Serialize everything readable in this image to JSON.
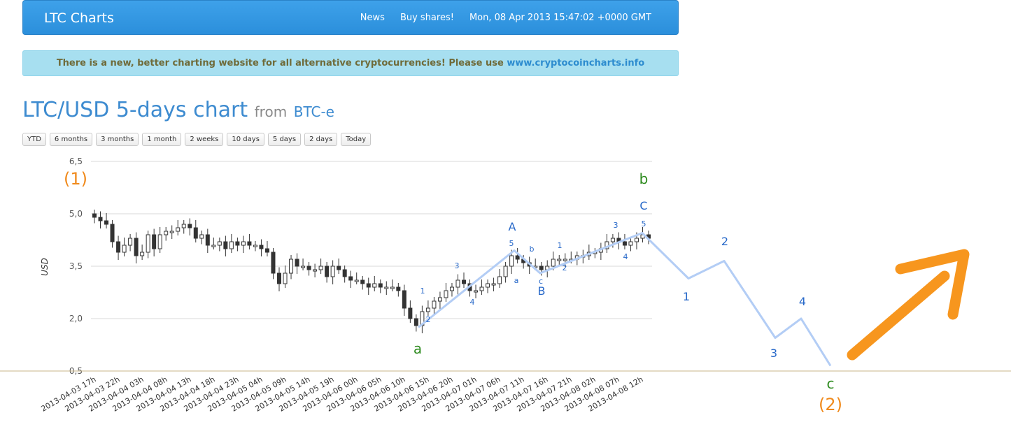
{
  "navbar": {
    "brand": "LTC Charts",
    "links": [
      "News",
      "Buy shares!"
    ],
    "datetime": "Mon, 08 Apr 2013 15:47:02 +0000 GMT"
  },
  "notice": {
    "text": "There is a new, better charting website for all alternative cryptocurrencies! Please use ",
    "link": "www.cryptocoincharts.info"
  },
  "header": {
    "title": "LTC/USD 5-days chart",
    "from": "from",
    "exchange": "BTC-e"
  },
  "ranges": [
    "YTD",
    "6 months",
    "3 months",
    "1 month",
    "2 weeks",
    "10 days",
    "5 days",
    "2 days",
    "Today"
  ],
  "colors": {
    "candle": "#333333",
    "wave_line": "#b3cdf5",
    "blue_label": "#2869c9",
    "green_label": "#2e8b1f",
    "orange_label": "#f08a1c",
    "arrow": "#f7961e"
  },
  "chart_data": {
    "type": "candlestick",
    "ylabel": "USD",
    "yticks": [
      "6,5",
      "5,0",
      "3,5",
      "2,0",
      "0,5"
    ],
    "ytick_values": [
      6.5,
      5.0,
      3.5,
      2.0,
      0.5
    ],
    "ylim": [
      0.5,
      6.5
    ],
    "xticks": [
      "2013-04-03 17h",
      "2013-04-03 22h",
      "2013-04-04 03h",
      "2013-04-04 08h",
      "2013-04-04 13h",
      "2013-04-04 18h",
      "2013-04-04 23h",
      "2013-04-05 04h",
      "2013-04-05 09h",
      "2013-04-05 14h",
      "2013-04-05 19h",
      "2013-04-06 00h",
      "2013-04-06 05h",
      "2013-04-06 10h",
      "2013-04-06 15h",
      "2013-04-06 20h",
      "2013-04-07 01h",
      "2013-04-07 06h",
      "2013-04-07 11h",
      "2013-04-07 16h",
      "2013-04-07 21h",
      "2013-04-08 02h",
      "2013-04-08 07h",
      "2013-04-08 12h"
    ],
    "grid": true,
    "closes": [
      4.9,
      4.8,
      4.7,
      4.2,
      3.9,
      4.1,
      4.3,
      3.8,
      3.9,
      4.4,
      4.0,
      4.4,
      4.5,
      4.5,
      4.6,
      4.7,
      4.6,
      4.3,
      4.4,
      4.1,
      4.1,
      4.2,
      4.0,
      4.2,
      4.1,
      4.2,
      4.1,
      4.1,
      4.0,
      3.9,
      3.3,
      3.0,
      3.3,
      3.7,
      3.5,
      3.5,
      3.4,
      3.4,
      3.5,
      3.2,
      3.5,
      3.4,
      3.2,
      3.1,
      3.1,
      3.0,
      2.9,
      3.0,
      2.9,
      2.9,
      2.9,
      2.8,
      2.3,
      2.0,
      1.8,
      2.2,
      2.3,
      2.5,
      2.6,
      2.8,
      2.9,
      3.1,
      3.0,
      2.8,
      2.8,
      2.9,
      3.0,
      3.0,
      3.2,
      3.5,
      3.8,
      3.7,
      3.6,
      3.5,
      3.5,
      3.4,
      3.5,
      3.7,
      3.7,
      3.7,
      3.7,
      3.8,
      3.8,
      3.9,
      3.9,
      4.0,
      4.2,
      4.3,
      4.2,
      4.1,
      4.2,
      4.3,
      4.4,
      4.3
    ],
    "annotations": {
      "orange": [
        "(1)",
        "(2)"
      ],
      "green": [
        "a",
        "b",
        "c"
      ],
      "blue_large": [
        "A",
        "B",
        "C",
        "1",
        "2",
        "3",
        "4"
      ],
      "blue_small": [
        "1",
        "2",
        "3",
        "4",
        "5",
        "a",
        "b",
        "c",
        "1",
        "2",
        "3",
        "4",
        "5"
      ]
    },
    "wave_path_values": [
      {
        "label": "a",
        "value": 1.75
      },
      {
        "label": "A",
        "value": 3.95
      },
      {
        "label": "B",
        "value": 3.3
      },
      {
        "label": "C",
        "value": 4.45
      },
      {
        "label": "1",
        "value": 3.15
      },
      {
        "label": "2",
        "value": 3.65
      },
      {
        "label": "3",
        "value": 1.45
      },
      {
        "label": "4",
        "value": 2.0
      },
      {
        "label": "c",
        "value": 0.65
      }
    ]
  }
}
